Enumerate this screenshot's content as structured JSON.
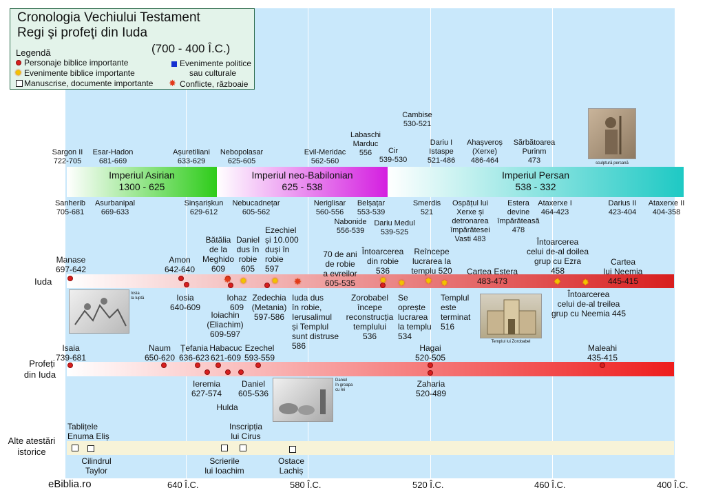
{
  "title": {
    "line1": "Cronologia Vechiului Testament",
    "line2": "Regi şi profeţi din Iuda",
    "range": "(700 - 400 Î.C.)"
  },
  "legend": {
    "heading": "Legendă",
    "persons": "Personaje biblice importante",
    "events": "Evenimente biblice importante",
    "manuscripts": "Manuscrise, documente importante",
    "political_1": "Evenimente politice",
    "political_2": "sau culturale",
    "conflicts": "Conflicte, războaie"
  },
  "empires": {
    "asirian": {
      "name": "Imperiul Asirian",
      "dates": "1300 - 625"
    },
    "babilonian": {
      "name": "Imperiul neo-Babilonian",
      "dates": "625 - 538"
    },
    "persan": {
      "name": "Imperiul Persan",
      "dates": "538 - 332"
    }
  },
  "rows": {
    "iuda": "Iuda",
    "profeti_1": "Profeți",
    "profeti_2": "din Iuda",
    "alte_1": "Alte atestări",
    "alte_2": "istorice"
  },
  "above_rulers": [
    {
      "name": "Sargon II",
      "dates": "722-705"
    },
    {
      "name": "Esar-Hadon",
      "dates": "681-669"
    },
    {
      "name": "Așuretiliani",
      "dates": "633-629"
    },
    {
      "name": "Nebopolasar",
      "dates": "625-605"
    },
    {
      "name": "Evil-Meridac",
      "dates": "562-560"
    },
    {
      "name": "Labaschi",
      "name2": "Marduc",
      "dates": "556"
    },
    {
      "name": "Cir",
      "dates": "539-530"
    },
    {
      "name": "Cambise",
      "dates": "530-521"
    },
    {
      "name": "Dariu I",
      "name2": "Istaspe",
      "dates": "521-486"
    },
    {
      "name": "Ahașveroș",
      "name2": "(Xerxe)",
      "dates": "486-464"
    },
    {
      "name": "Sărbătoarea",
      "name2": "Purinm",
      "dates": "473"
    }
  ],
  "below_rulers": [
    {
      "name": "Sanherib",
      "dates": "705-681"
    },
    {
      "name": "Asurbanipal",
      "dates": "669-633"
    },
    {
      "name": "Sinșarișkun",
      "dates": "629-612"
    },
    {
      "name": "Nebucadnețar",
      "dates": "605-562"
    },
    {
      "name": "Neriglisar",
      "dates": "560-556"
    },
    {
      "name": "Nabonide",
      "dates": "556-539"
    },
    {
      "name": "Belșațar",
      "dates": "553-539"
    },
    {
      "name": "Dariu Medul",
      "dates": "539-525"
    },
    {
      "name": "Smerdis",
      "dates": "521"
    },
    {
      "name": "Ospățul lui",
      "name2": "Xerxe și",
      "name3": "detronarea",
      "name4": "împărătesei",
      "dates": "Vasti 483"
    },
    {
      "name": "Estera",
      "name2": "devine",
      "name3": "împărăteasă",
      "dates": "478"
    },
    {
      "name": "Ataxerxe I",
      "dates": "464-423"
    },
    {
      "name": "Darius II",
      "dates": "423-404"
    },
    {
      "name": "Ataxerxe II",
      "dates": "404-358"
    }
  ],
  "iuda_above": [
    {
      "text": "Manase",
      "text2": "697-642"
    },
    {
      "text": "Amon",
      "text2": "642-640"
    },
    {
      "text": "Bătălia",
      "text2": "de la",
      "text3": "Meghido",
      "text4": "609"
    },
    {
      "text": "Daniel",
      "text2": "dus în",
      "text3": "robie",
      "text4": "605"
    },
    {
      "text": "Ezechiel",
      "text2": "și 10.000",
      "text3": "duși în",
      "text4": "robie",
      "text5": "597"
    },
    {
      "text": "70 de ani",
      "text2": "de robie",
      "text3": "a evreilor",
      "text4": "605-535"
    },
    {
      "text": "Întoarcerea",
      "text2": "din robie",
      "text3": "536"
    },
    {
      "text": "Reîncepe",
      "text2": "lucrarea la",
      "text3": "templu 520"
    },
    {
      "text": "Cartea Estera",
      "text2": "483-473"
    },
    {
      "text": "Întoarcerea",
      "text2": "celui de-al doilea",
      "text3": "grup cu Ezra",
      "text4": "458"
    },
    {
      "text": "Cartea",
      "text2": "lui Neemia",
      "text3": "445-415"
    }
  ],
  "iuda_below": [
    {
      "text": "Iosia",
      "text2": "640-609"
    },
    {
      "text": "Iohaz",
      "text2": "609"
    },
    {
      "text": "Ioiachin",
      "text2": "(Eliachim)",
      "text3": "609-597"
    },
    {
      "text": "Zedechia",
      "text2": "(Metania)",
      "text3": "597-586"
    },
    {
      "text": "Iuda dus",
      "text2": "în robie,",
      "text3": "Ierusalimul",
      "text4": "și Templul",
      "text5": "sunt distruse",
      "text6": "586"
    },
    {
      "text": "Zorobabel",
      "text2": "începe",
      "text3": "reconstrucția",
      "text4": "templului",
      "text5": "536"
    },
    {
      "text": "Se",
      "text2": "oprește",
      "text3": "lucrarea",
      "text4": "la templu",
      "text5": "534"
    },
    {
      "text": "Templul",
      "text2": "este",
      "text3": "terminat",
      "text4": "516"
    },
    {
      "text": "Întoarcerea",
      "text2": "celui de-al treilea",
      "text3": "grup cu Neemia 445"
    }
  ],
  "prophets_above": [
    {
      "text": "Isaia",
      "text2": "739-681"
    },
    {
      "text": "Naum",
      "text2": "650-620"
    },
    {
      "text": "Țefania",
      "text2": "636-623"
    },
    {
      "text": "Habacuc",
      "text2": "621-609"
    },
    {
      "text": "Ezechel",
      "text2": "593-559"
    },
    {
      "text": "Hagai",
      "text2": "520-505"
    },
    {
      "text": "Maleahi",
      "text2": "435-415"
    }
  ],
  "prophets_below": [
    {
      "text": "Ieremia",
      "text2": "627-574"
    },
    {
      "text": "Hulda"
    },
    {
      "text": "Daniel",
      "text2": "605-536"
    },
    {
      "text": "Zaharia",
      "text2": "520-489"
    }
  ],
  "other_above": [
    {
      "text": "Tablițele",
      "text2": "Enuma Eliș"
    },
    {
      "text": "Inscripția",
      "text2": "lui Cirus"
    }
  ],
  "other_below": [
    {
      "text": "Cilindrul",
      "text2": "Taylor"
    },
    {
      "text": "Scrierile",
      "text2": "lui Ioachim"
    },
    {
      "text": "Ostace",
      "text2": "Lachiș"
    }
  ],
  "captions": {
    "iosia_1": "Iosia",
    "iosia_2": "la luptă",
    "daniel_1": "Daniel",
    "daniel_2": "în groapa",
    "daniel_3": "cu lei",
    "templu": "Templul lui Zorobabel",
    "persana": "sculptură persană"
  },
  "axis": {
    "brand": "eBiblia.ro",
    "t640": "640 Î.C.",
    "t580": "580 Î.C.",
    "t520": "520 Î.C.",
    "t460": "460 Î.C.",
    "t400": "400 Î.C."
  },
  "colors": {
    "band": "#c9e8fb",
    "asirian": "#2ecc1a",
    "babilonian": "#d41fe0",
    "persan": "#1ec9c4",
    "red": "#d81e1e",
    "row_alte": "#f7f3d8"
  }
}
